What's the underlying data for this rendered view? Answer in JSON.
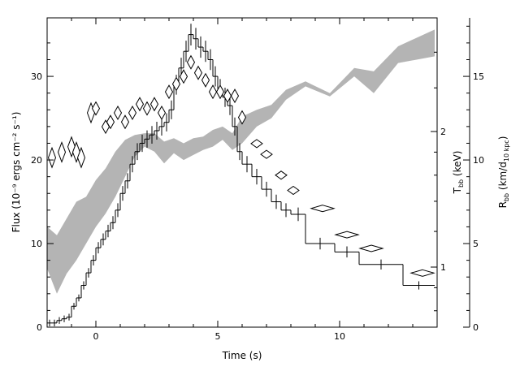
{
  "chart_data": {
    "type": "line",
    "xlabel": "Time (s)",
    "ylabel": "Flux (10⁻⁹ ergs cm⁻² s⁻¹)",
    "y2label_mid": "T",
    "y2label_sub": "bb",
    "y2label_unit": " (keV)",
    "y3label_main": "R",
    "y3label_sub": "bb",
    "y3label_unit_pre": " (km/d",
    "y3label_unit_sub": "10 kpc",
    "y3label_unit_post": ")",
    "xlim": [
      -2,
      14
    ],
    "ylim": [
      0,
      37
    ],
    "x_ticks": [
      0,
      5,
      10
    ],
    "y_ticks": [
      0,
      10,
      20,
      30
    ],
    "temperature_axis": {
      "ticks": [
        1,
        2
      ]
    },
    "radius_axis": {
      "ylim": [
        0,
        18.5
      ],
      "ticks": [
        0,
        5,
        10,
        15
      ]
    },
    "series": [
      {
        "kind": "flux-step-histogram",
        "x": [
          -2.0,
          -1.8,
          -1.6,
          -1.4,
          -1.2,
          -1.0,
          -0.8,
          -0.6,
          -0.4,
          -0.2,
          0.0,
          0.2,
          0.4,
          0.6,
          0.8,
          1.0,
          1.2,
          1.4,
          1.6,
          1.8,
          2.0,
          2.2,
          2.4,
          2.6,
          2.8,
          3.0,
          3.2,
          3.4,
          3.6,
          3.8,
          4.0,
          4.2,
          4.4,
          4.6,
          4.8,
          5.0,
          5.2,
          5.4,
          5.6,
          5.8,
          6.0,
          6.4,
          6.8,
          7.2,
          7.6,
          8.0,
          8.6,
          9.8,
          10.8,
          12.6,
          13.9
        ],
        "values": [
          0.5,
          0.5,
          0.8,
          1.0,
          1.2,
          2.5,
          3.5,
          5.0,
          6.5,
          8.0,
          9.5,
          10.5,
          11.5,
          12.5,
          14.0,
          16.0,
          17.5,
          19.5,
          21.0,
          22.0,
          22.5,
          23.0,
          23.5,
          24.0,
          24.5,
          26.0,
          29.0,
          31.0,
          33.0,
          35.0,
          34.5,
          33.5,
          33.0,
          32.0,
          30.0,
          28.5,
          27.5,
          26.5,
          24.0,
          21.0,
          19.5,
          18.0,
          16.5,
          15.0,
          14.0,
          13.5,
          10.0,
          9.0,
          7.5,
          5.0
        ]
      },
      {
        "kind": "temperature-diamonds-keV",
        "points": [
          {
            "t": -1.8,
            "kT": 1.75
          },
          {
            "t": -1.4,
            "kT": 1.8
          },
          {
            "t": -1.0,
            "kT": 1.85
          },
          {
            "t": -0.8,
            "kT": 1.8
          },
          {
            "t": -0.6,
            "kT": 1.75
          },
          {
            "t": -0.2,
            "kT": 2.2
          },
          {
            "t": 0.0,
            "kT": 2.25
          },
          {
            "t": 0.4,
            "kT": 2.05
          },
          {
            "t": 0.6,
            "kT": 2.1
          },
          {
            "t": 0.9,
            "kT": 2.2
          },
          {
            "t": 1.2,
            "kT": 2.1
          },
          {
            "t": 1.5,
            "kT": 2.2
          },
          {
            "t": 1.8,
            "kT": 2.3
          },
          {
            "t": 2.1,
            "kT": 2.25
          },
          {
            "t": 2.4,
            "kT": 2.3
          },
          {
            "t": 2.7,
            "kT": 2.2
          },
          {
            "t": 3.0,
            "kT": 2.45
          },
          {
            "t": 3.3,
            "kT": 2.55
          },
          {
            "t": 3.6,
            "kT": 2.65
          },
          {
            "t": 3.9,
            "kT": 2.85
          },
          {
            "t": 4.2,
            "kT": 2.7
          },
          {
            "t": 4.5,
            "kT": 2.6
          },
          {
            "t": 4.8,
            "kT": 2.45
          },
          {
            "t": 5.1,
            "kT": 2.45
          },
          {
            "t": 5.4,
            "kT": 2.4
          },
          {
            "t": 5.7,
            "kT": 2.4
          },
          {
            "t": 6.0,
            "kT": 2.15
          },
          {
            "t": 6.6,
            "kT": 1.88
          },
          {
            "t": 7.0,
            "kT": 1.78
          },
          {
            "t": 7.6,
            "kT": 1.6
          },
          {
            "t": 8.1,
            "kT": 1.48
          },
          {
            "t": 9.3,
            "kT": 1.35
          },
          {
            "t": 10.3,
            "kT": 1.18
          },
          {
            "t": 11.3,
            "kT": 1.1
          },
          {
            "t": 13.4,
            "kT": 0.97
          }
        ]
      },
      {
        "kind": "radius-band",
        "x": [
          -2.0,
          -1.6,
          -1.2,
          -0.8,
          -0.4,
          0.0,
          0.4,
          0.8,
          1.2,
          1.6,
          2.0,
          2.4,
          2.8,
          3.2,
          3.6,
          4.0,
          4.4,
          4.8,
          5.2,
          5.6,
          6.0,
          6.6,
          7.2,
          7.8,
          8.6,
          9.6,
          10.6,
          11.4,
          12.4,
          13.9
        ],
        "low": [
          3.5,
          2.0,
          3.2,
          4.0,
          5.0,
          6.0,
          6.8,
          7.8,
          9.0,
          10.2,
          10.8,
          10.5,
          9.8,
          10.4,
          10.0,
          10.3,
          10.6,
          10.8,
          11.2,
          10.6,
          11.0,
          12.0,
          12.5,
          13.6,
          14.4,
          13.8,
          15.0,
          14.0,
          15.8,
          16.2
        ],
        "high": [
          6.0,
          5.5,
          6.5,
          7.5,
          7.8,
          8.8,
          9.5,
          10.5,
          11.2,
          11.5,
          11.6,
          11.6,
          11.1,
          11.3,
          11.0,
          11.3,
          11.4,
          11.8,
          12.0,
          11.6,
          12.6,
          13.0,
          13.3,
          14.2,
          14.7,
          14.0,
          15.5,
          15.3,
          16.8,
          17.8
        ]
      }
    ]
  }
}
